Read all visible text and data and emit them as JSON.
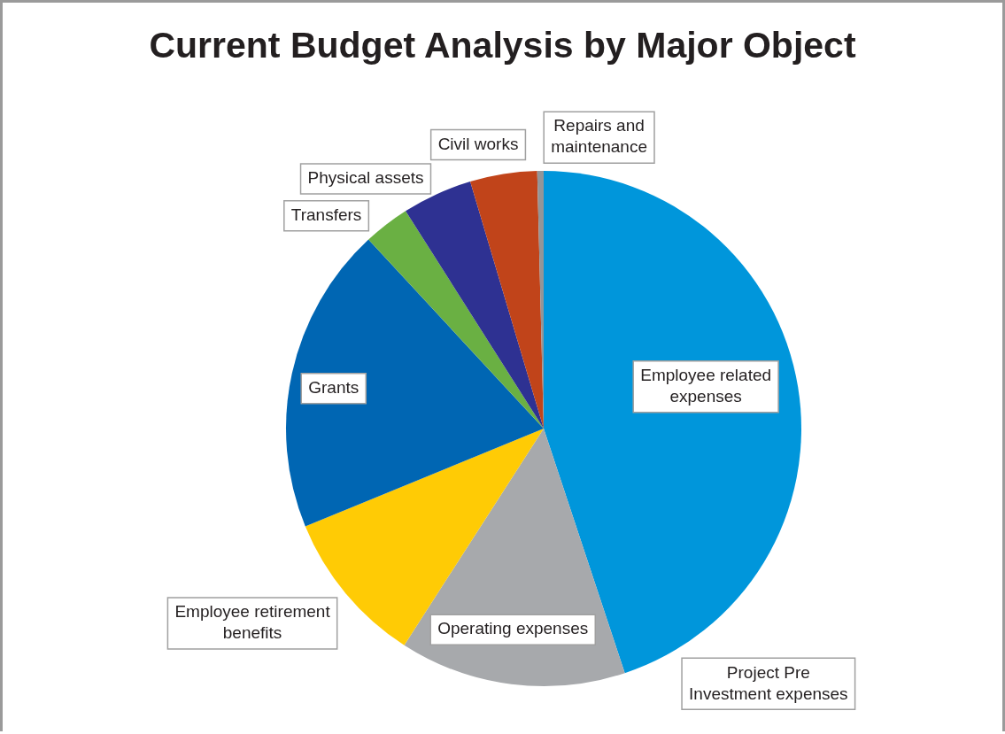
{
  "chart_data": {
    "type": "pie",
    "title": "Current Budget Analysis by Major Object",
    "categories": [
      "Employee related expenses",
      "Project Pre Investment expenses",
      "Operating expenses",
      "Employee retirement benefits",
      "Grants",
      "Transfers",
      "Physical assets",
      "Civil works",
      "Repairs and maintenance"
    ],
    "values": [
      44.9,
      0,
      14.2,
      9.7,
      19.3,
      2.9,
      4.4,
      4.2,
      0.4
    ],
    "colors": [
      "#0096db",
      "#7f7f7f",
      "#a7a9ac",
      "#ffcb05",
      "#0066b3",
      "#6ab043",
      "#2e3192",
      "#c1441a",
      "#939598"
    ],
    "legend": false
  }
}
